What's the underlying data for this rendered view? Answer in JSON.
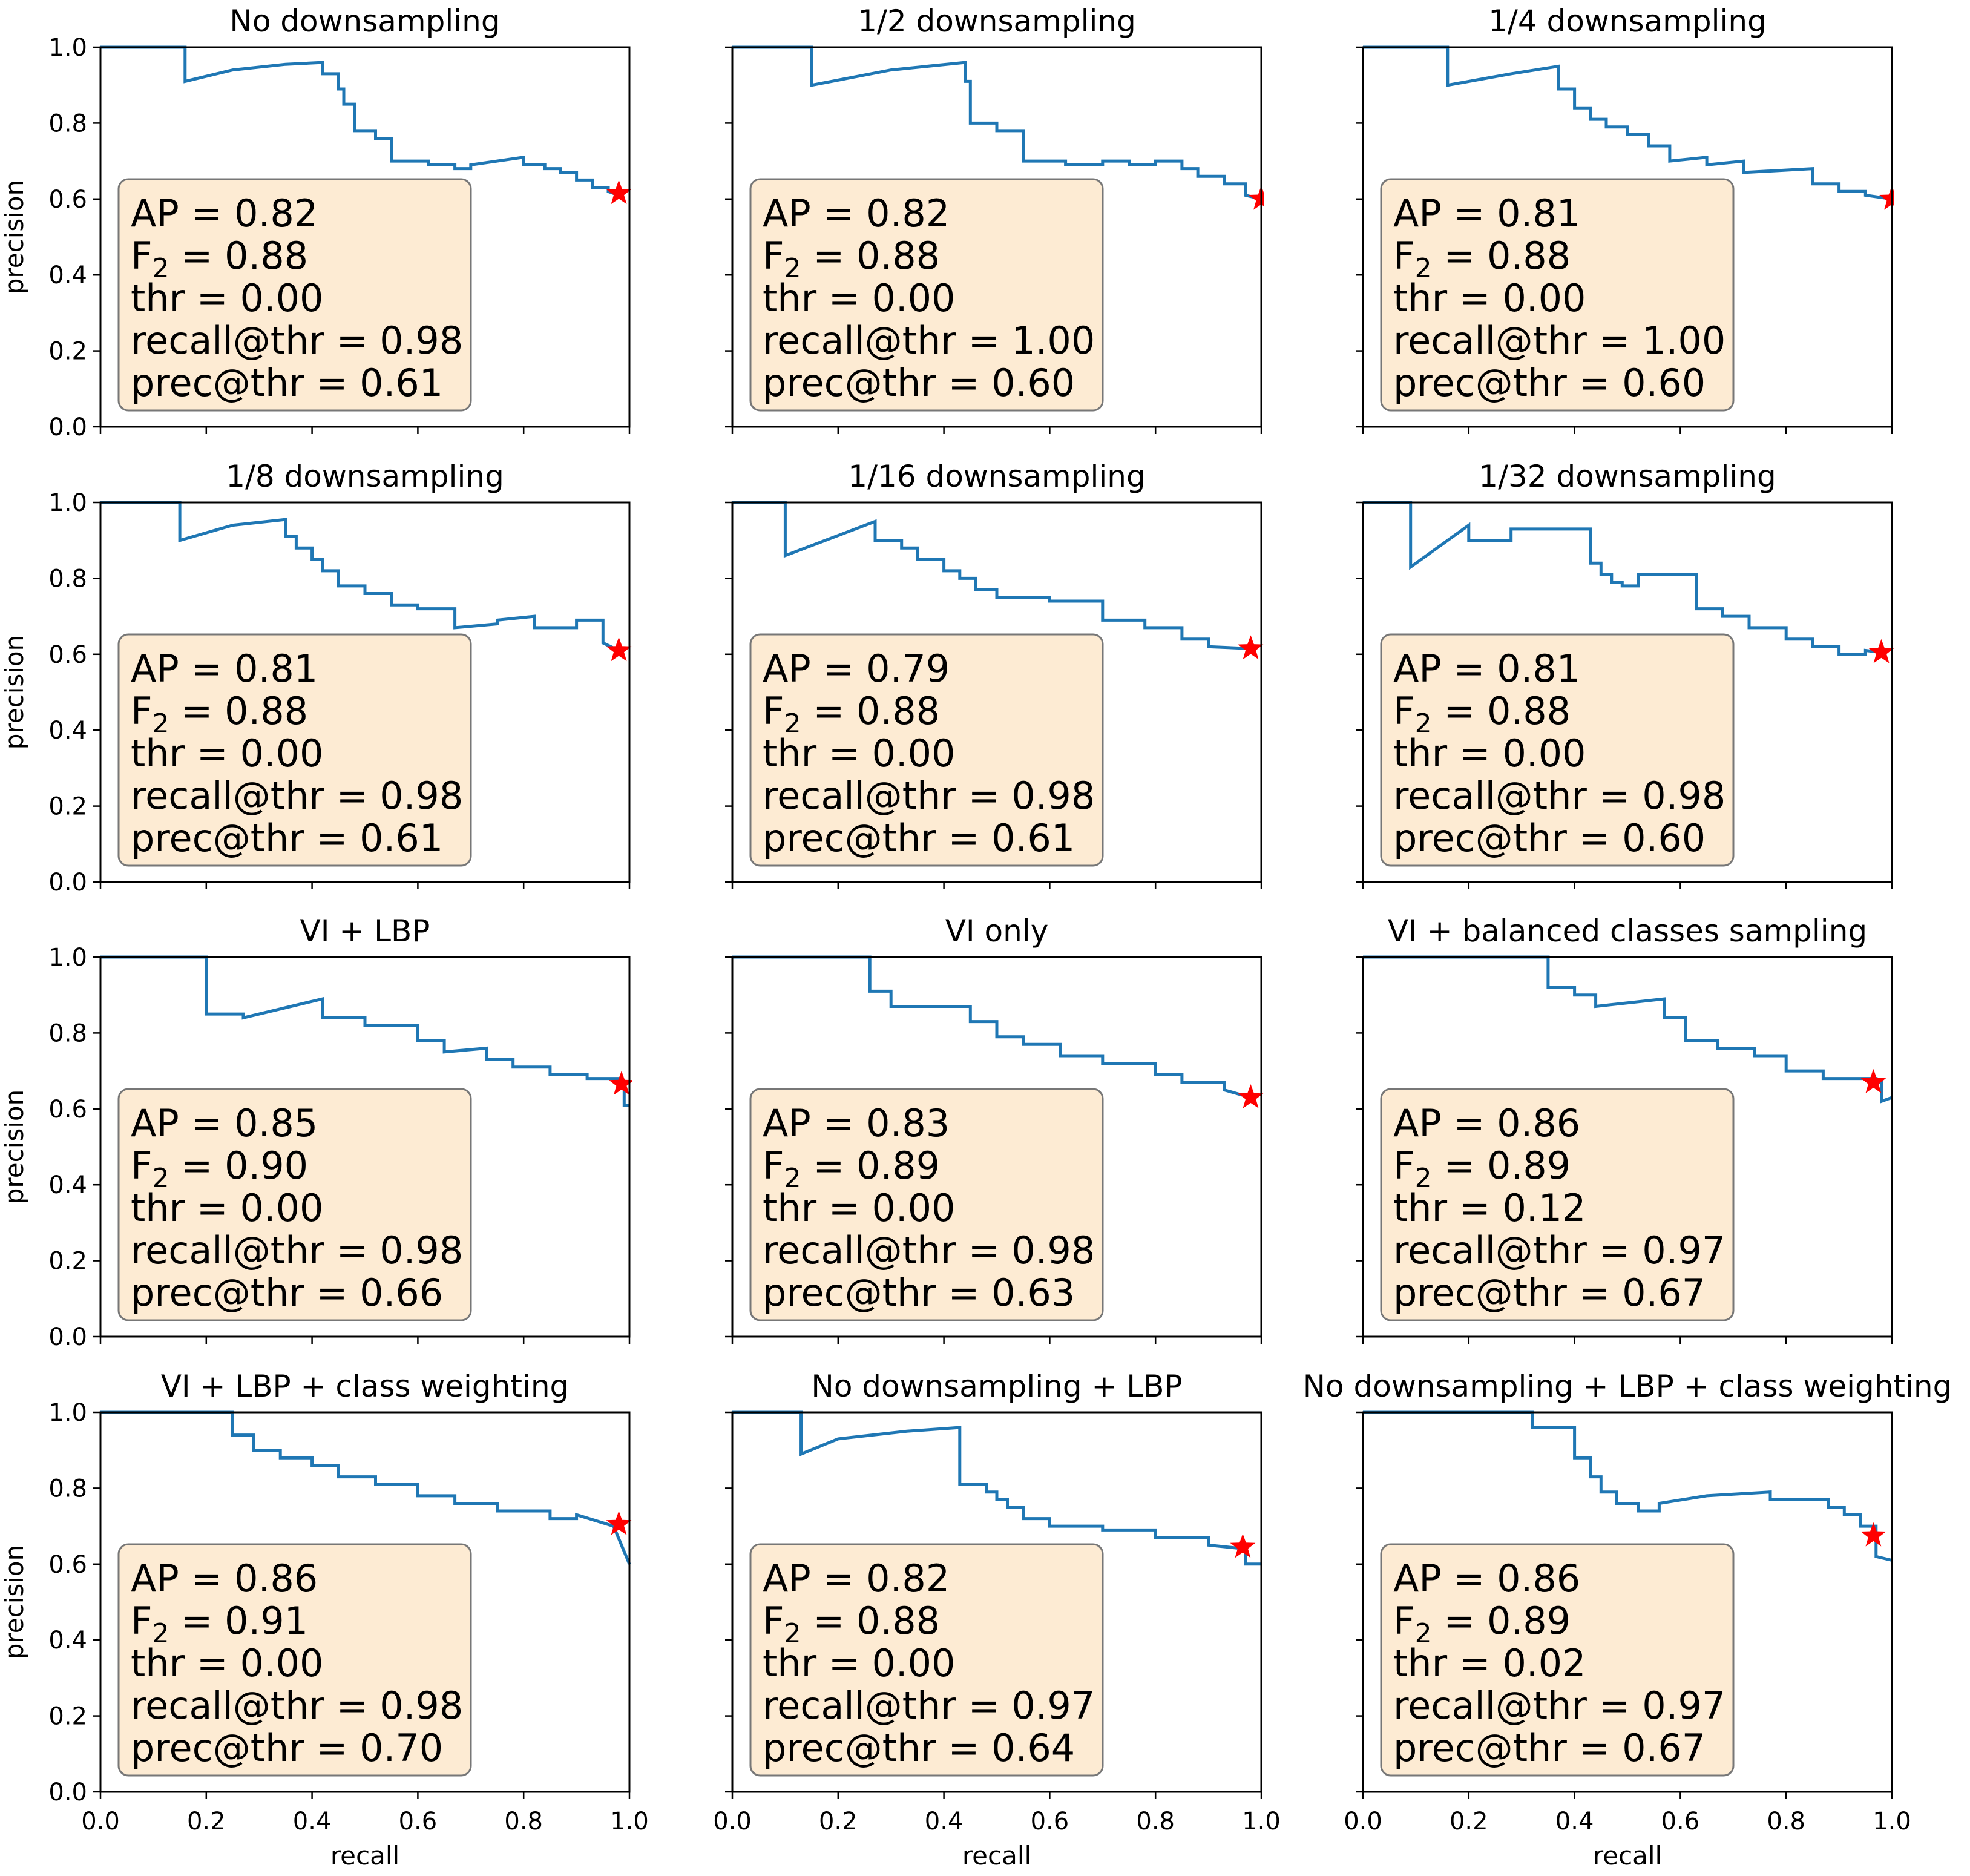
{
  "chart_data": [
    {
      "type": "line",
      "title": "No downsampling",
      "xlabel": "",
      "ylabel": "precision",
      "xlim": [
        0,
        1
      ],
      "ylim": [
        0,
        1
      ],
      "series": [
        {
          "x": [
            0.0,
            0.16,
            0.16,
            0.25,
            0.35,
            0.42,
            0.42,
            0.45,
            0.45,
            0.46,
            0.46,
            0.48,
            0.48,
            0.52,
            0.52,
            0.55,
            0.55,
            0.62,
            0.62,
            0.67,
            0.67,
            0.7,
            0.7,
            0.8,
            0.8,
            0.84,
            0.84,
            0.87,
            0.87,
            0.9,
            0.9,
            0.93,
            0.93,
            0.96,
            0.96,
            0.98
          ],
          "y": [
            1.0,
            1.0,
            0.91,
            0.94,
            0.955,
            0.96,
            0.93,
            0.93,
            0.89,
            0.89,
            0.85,
            0.85,
            0.78,
            0.78,
            0.76,
            0.76,
            0.7,
            0.7,
            0.69,
            0.69,
            0.68,
            0.68,
            0.69,
            0.71,
            0.69,
            0.69,
            0.68,
            0.68,
            0.67,
            0.67,
            0.65,
            0.65,
            0.63,
            0.63,
            0.62,
            0.61
          ]
        }
      ],
      "star": {
        "x": 0.98,
        "y": 0.615
      },
      "box": {
        "ap": "AP = 0.82",
        "f2_prefix": "F",
        "f2_sub": "2",
        "f2_value": " = 0.88",
        "thr": "thr = 0.00",
        "recall": "recall@thr = 0.98",
        "prec": "prec@thr = 0.61"
      }
    },
    {
      "type": "line",
      "title": "1/2 downsampling",
      "xlabel": "",
      "ylabel": "",
      "xlim": [
        0,
        1
      ],
      "ylim": [
        0,
        1
      ],
      "series": [
        {
          "x": [
            0.0,
            0.15,
            0.15,
            0.3,
            0.44,
            0.44,
            0.45,
            0.45,
            0.5,
            0.5,
            0.55,
            0.55,
            0.63,
            0.63,
            0.7,
            0.7,
            0.75,
            0.75,
            0.8,
            0.8,
            0.85,
            0.85,
            0.88,
            0.88,
            0.93,
            0.93,
            0.97,
            0.97,
            1.0
          ],
          "y": [
            1.0,
            1.0,
            0.9,
            0.94,
            0.96,
            0.91,
            0.91,
            0.8,
            0.8,
            0.78,
            0.78,
            0.7,
            0.7,
            0.69,
            0.69,
            0.7,
            0.7,
            0.69,
            0.69,
            0.7,
            0.7,
            0.68,
            0.68,
            0.66,
            0.66,
            0.64,
            0.64,
            0.61,
            0.6
          ]
        }
      ],
      "star": {
        "x": 1.0,
        "y": 0.6
      },
      "box": {
        "ap": "AP = 0.82",
        "f2_prefix": "F",
        "f2_sub": "2",
        "f2_value": " = 0.88",
        "thr": "thr = 0.00",
        "recall": "recall@thr = 1.00",
        "prec": "prec@thr = 0.60"
      }
    },
    {
      "type": "line",
      "title": "1/4 downsampling",
      "xlabel": "",
      "ylabel": "",
      "xlim": [
        0,
        1
      ],
      "ylim": [
        0,
        1
      ],
      "series": [
        {
          "x": [
            0.0,
            0.16,
            0.16,
            0.28,
            0.37,
            0.37,
            0.4,
            0.4,
            0.43,
            0.43,
            0.46,
            0.46,
            0.5,
            0.5,
            0.54,
            0.54,
            0.58,
            0.58,
            0.65,
            0.65,
            0.72,
            0.72,
            0.85,
            0.85,
            0.9,
            0.9,
            0.95,
            0.95,
            1.0
          ],
          "y": [
            1.0,
            1.0,
            0.9,
            0.93,
            0.95,
            0.89,
            0.89,
            0.84,
            0.84,
            0.81,
            0.81,
            0.79,
            0.79,
            0.77,
            0.77,
            0.74,
            0.74,
            0.7,
            0.71,
            0.69,
            0.7,
            0.67,
            0.68,
            0.64,
            0.64,
            0.62,
            0.62,
            0.61,
            0.6
          ]
        }
      ],
      "star": {
        "x": 1.0,
        "y": 0.6
      },
      "box": {
        "ap": "AP = 0.81",
        "f2_prefix": "F",
        "f2_sub": "2",
        "f2_value": " = 0.88",
        "thr": "thr = 0.00",
        "recall": "recall@thr = 1.00",
        "prec": "prec@thr = 0.60"
      }
    },
    {
      "type": "line",
      "title": "1/8 downsampling",
      "xlabel": "",
      "ylabel": "precision",
      "xlim": [
        0,
        1
      ],
      "ylim": [
        0,
        1
      ],
      "series": [
        {
          "x": [
            0.0,
            0.15,
            0.15,
            0.25,
            0.35,
            0.35,
            0.37,
            0.37,
            0.4,
            0.4,
            0.42,
            0.42,
            0.45,
            0.45,
            0.5,
            0.5,
            0.55,
            0.55,
            0.6,
            0.6,
            0.67,
            0.67,
            0.75,
            0.75,
            0.82,
            0.82,
            0.9,
            0.9,
            0.95,
            0.95,
            0.98
          ],
          "y": [
            1.0,
            1.0,
            0.9,
            0.94,
            0.955,
            0.91,
            0.91,
            0.88,
            0.88,
            0.85,
            0.85,
            0.82,
            0.82,
            0.78,
            0.78,
            0.76,
            0.76,
            0.73,
            0.73,
            0.72,
            0.72,
            0.67,
            0.68,
            0.69,
            0.7,
            0.67,
            0.67,
            0.69,
            0.69,
            0.63,
            0.61
          ]
        }
      ],
      "star": {
        "x": 0.98,
        "y": 0.61
      },
      "box": {
        "ap": "AP = 0.81",
        "f2_prefix": "F",
        "f2_sub": "2",
        "f2_value": " = 0.88",
        "thr": "thr = 0.00",
        "recall": "recall@thr = 0.98",
        "prec": "prec@thr = 0.61"
      }
    },
    {
      "type": "line",
      "title": "1/16 downsampling",
      "xlabel": "",
      "ylabel": "",
      "xlim": [
        0,
        1
      ],
      "ylim": [
        0,
        1
      ],
      "series": [
        {
          "x": [
            0.0,
            0.1,
            0.1,
            0.27,
            0.27,
            0.32,
            0.32,
            0.35,
            0.35,
            0.4,
            0.4,
            0.43,
            0.43,
            0.46,
            0.46,
            0.5,
            0.5,
            0.6,
            0.6,
            0.7,
            0.7,
            0.78,
            0.78,
            0.85,
            0.85,
            0.9,
            0.9,
            0.98
          ],
          "y": [
            1.0,
            1.0,
            0.86,
            0.95,
            0.9,
            0.9,
            0.88,
            0.88,
            0.85,
            0.85,
            0.82,
            0.82,
            0.8,
            0.8,
            0.77,
            0.77,
            0.75,
            0.75,
            0.74,
            0.74,
            0.69,
            0.69,
            0.67,
            0.67,
            0.64,
            0.64,
            0.62,
            0.615
          ]
        }
      ],
      "star": {
        "x": 0.98,
        "y": 0.615
      },
      "box": {
        "ap": "AP = 0.79",
        "f2_prefix": "F",
        "f2_sub": "2",
        "f2_value": " = 0.88",
        "thr": "thr = 0.00",
        "recall": "recall@thr = 0.98",
        "prec": "prec@thr = 0.61"
      }
    },
    {
      "type": "line",
      "title": "1/32 downsampling",
      "xlabel": "",
      "ylabel": "",
      "xlim": [
        0,
        1
      ],
      "ylim": [
        0,
        1
      ],
      "series": [
        {
          "x": [
            0.0,
            0.09,
            0.09,
            0.2,
            0.2,
            0.28,
            0.28,
            0.43,
            0.43,
            0.45,
            0.45,
            0.47,
            0.47,
            0.49,
            0.49,
            0.52,
            0.52,
            0.63,
            0.63,
            0.68,
            0.68,
            0.73,
            0.73,
            0.8,
            0.8,
            0.85,
            0.85,
            0.9,
            0.9,
            0.95,
            0.95,
            0.98
          ],
          "y": [
            1.0,
            1.0,
            0.83,
            0.94,
            0.9,
            0.9,
            0.93,
            0.93,
            0.84,
            0.84,
            0.81,
            0.81,
            0.79,
            0.79,
            0.78,
            0.78,
            0.81,
            0.81,
            0.72,
            0.72,
            0.7,
            0.7,
            0.67,
            0.67,
            0.64,
            0.64,
            0.62,
            0.62,
            0.6,
            0.6,
            0.61,
            0.605
          ]
        }
      ],
      "star": {
        "x": 0.98,
        "y": 0.605
      },
      "box": {
        "ap": "AP = 0.81",
        "f2_prefix": "F",
        "f2_sub": "2",
        "f2_value": " = 0.88",
        "thr": "thr = 0.00",
        "recall": "recall@thr = 0.98",
        "prec": "prec@thr = 0.60"
      }
    },
    {
      "type": "line",
      "title": "VI + LBP",
      "xlabel": "",
      "ylabel": "precision",
      "xlim": [
        0,
        1
      ],
      "ylim": [
        0,
        1
      ],
      "series": [
        {
          "x": [
            0.0,
            0.2,
            0.2,
            0.27,
            0.27,
            0.42,
            0.42,
            0.5,
            0.5,
            0.6,
            0.6,
            0.65,
            0.65,
            0.73,
            0.73,
            0.78,
            0.78,
            0.85,
            0.85,
            0.92,
            0.92,
            0.98,
            0.98,
            0.99,
            0.99,
            1.0
          ],
          "y": [
            1.0,
            1.0,
            0.85,
            0.85,
            0.84,
            0.89,
            0.84,
            0.84,
            0.82,
            0.82,
            0.78,
            0.78,
            0.75,
            0.76,
            0.73,
            0.73,
            0.71,
            0.71,
            0.69,
            0.69,
            0.68,
            0.68,
            0.66,
            0.66,
            0.61,
            0.61
          ]
        }
      ],
      "star": {
        "x": 0.985,
        "y": 0.665
      },
      "box": {
        "ap": "AP = 0.85",
        "f2_prefix": "F",
        "f2_sub": "2",
        "f2_value": " = 0.90",
        "thr": "thr = 0.00",
        "recall": "recall@thr = 0.98",
        "prec": "prec@thr = 0.66"
      }
    },
    {
      "type": "line",
      "title": "VI only",
      "xlabel": "",
      "ylabel": "",
      "xlim": [
        0,
        1
      ],
      "ylim": [
        0,
        1
      ],
      "series": [
        {
          "x": [
            0.0,
            0.26,
            0.26,
            0.3,
            0.3,
            0.45,
            0.45,
            0.5,
            0.5,
            0.55,
            0.55,
            0.62,
            0.62,
            0.7,
            0.7,
            0.8,
            0.8,
            0.85,
            0.85,
            0.93,
            0.93,
            0.98
          ],
          "y": [
            1.0,
            1.0,
            0.91,
            0.91,
            0.87,
            0.87,
            0.83,
            0.83,
            0.79,
            0.79,
            0.77,
            0.77,
            0.74,
            0.74,
            0.72,
            0.72,
            0.69,
            0.69,
            0.67,
            0.67,
            0.65,
            0.63
          ]
        }
      ],
      "star": {
        "x": 0.98,
        "y": 0.63
      },
      "box": {
        "ap": "AP = 0.83",
        "f2_prefix": "F",
        "f2_sub": "2",
        "f2_value": " = 0.89",
        "thr": "thr = 0.00",
        "recall": "recall@thr = 0.98",
        "prec": "prec@thr = 0.63"
      }
    },
    {
      "type": "line",
      "title": "VI + balanced classes sampling",
      "xlabel": "",
      "ylabel": "",
      "xlim": [
        0,
        1
      ],
      "ylim": [
        0,
        1
      ],
      "series": [
        {
          "x": [
            0.0,
            0.35,
            0.35,
            0.4,
            0.4,
            0.44,
            0.44,
            0.57,
            0.57,
            0.61,
            0.61,
            0.67,
            0.67,
            0.74,
            0.74,
            0.8,
            0.8,
            0.87,
            0.87,
            0.97,
            0.97,
            0.98,
            0.98,
            1.0
          ],
          "y": [
            1.0,
            1.0,
            0.92,
            0.92,
            0.9,
            0.9,
            0.87,
            0.89,
            0.84,
            0.84,
            0.78,
            0.78,
            0.76,
            0.76,
            0.74,
            0.74,
            0.7,
            0.7,
            0.68,
            0.68,
            0.67,
            0.67,
            0.62,
            0.63
          ]
        }
      ],
      "star": {
        "x": 0.965,
        "y": 0.67
      },
      "box": {
        "ap": "AP = 0.86",
        "f2_prefix": "F",
        "f2_sub": "2",
        "f2_value": " = 0.89",
        "thr": "thr = 0.12",
        "recall": "recall@thr = 0.97",
        "prec": "prec@thr = 0.67"
      }
    },
    {
      "type": "line",
      "title": "VI + LBP + class weighting",
      "xlabel": "recall",
      "ylabel": "precision",
      "xlim": [
        0,
        1
      ],
      "ylim": [
        0,
        1
      ],
      "series": [
        {
          "x": [
            0.0,
            0.25,
            0.25,
            0.29,
            0.29,
            0.34,
            0.34,
            0.4,
            0.4,
            0.45,
            0.45,
            0.52,
            0.52,
            0.6,
            0.6,
            0.67,
            0.67,
            0.75,
            0.75,
            0.85,
            0.85,
            0.9,
            0.9,
            0.97,
            1.0
          ],
          "y": [
            1.0,
            1.0,
            0.94,
            0.94,
            0.9,
            0.9,
            0.88,
            0.88,
            0.86,
            0.86,
            0.83,
            0.83,
            0.81,
            0.81,
            0.78,
            0.78,
            0.76,
            0.76,
            0.74,
            0.74,
            0.72,
            0.72,
            0.73,
            0.7,
            0.6
          ]
        }
      ],
      "star": {
        "x": 0.98,
        "y": 0.705
      },
      "box": {
        "ap": "AP = 0.86",
        "f2_prefix": "F",
        "f2_sub": "2",
        "f2_value": " = 0.91",
        "thr": "thr = 0.00",
        "recall": "recall@thr = 0.98",
        "prec": "prec@thr = 0.70"
      }
    },
    {
      "type": "line",
      "title": "No downsampling + LBP",
      "xlabel": "recall",
      "ylabel": "",
      "xlim": [
        0,
        1
      ],
      "ylim": [
        0,
        1
      ],
      "series": [
        {
          "x": [
            0.0,
            0.13,
            0.13,
            0.2,
            0.33,
            0.43,
            0.43,
            0.48,
            0.48,
            0.5,
            0.5,
            0.52,
            0.52,
            0.55,
            0.55,
            0.6,
            0.6,
            0.7,
            0.7,
            0.8,
            0.8,
            0.9,
            0.9,
            0.97,
            0.97,
            1.0
          ],
          "y": [
            1.0,
            1.0,
            0.89,
            0.93,
            0.95,
            0.96,
            0.81,
            0.81,
            0.79,
            0.79,
            0.77,
            0.77,
            0.75,
            0.75,
            0.72,
            0.72,
            0.7,
            0.7,
            0.69,
            0.69,
            0.67,
            0.67,
            0.65,
            0.64,
            0.6,
            0.6
          ]
        }
      ],
      "star": {
        "x": 0.965,
        "y": 0.645
      },
      "box": {
        "ap": "AP = 0.82",
        "f2_prefix": "F",
        "f2_sub": "2",
        "f2_value": " = 0.88",
        "thr": "thr = 0.00",
        "recall": "recall@thr = 0.97",
        "prec": "prec@thr = 0.64"
      }
    },
    {
      "type": "line",
      "title": "No downsampling + LBP + class weighting",
      "xlabel": "recall",
      "ylabel": "",
      "xlim": [
        0,
        1
      ],
      "ylim": [
        0,
        1
      ],
      "series": [
        {
          "x": [
            0.0,
            0.32,
            0.32,
            0.4,
            0.4,
            0.43,
            0.43,
            0.45,
            0.45,
            0.48,
            0.48,
            0.52,
            0.52,
            0.56,
            0.56,
            0.65,
            0.77,
            0.77,
            0.88,
            0.88,
            0.91,
            0.91,
            0.94,
            0.94,
            0.97,
            0.97,
            1.0
          ],
          "y": [
            1.0,
            1.0,
            0.96,
            0.96,
            0.88,
            0.88,
            0.83,
            0.83,
            0.79,
            0.79,
            0.76,
            0.76,
            0.74,
            0.74,
            0.76,
            0.78,
            0.79,
            0.77,
            0.77,
            0.75,
            0.75,
            0.73,
            0.73,
            0.7,
            0.7,
            0.62,
            0.61
          ]
        }
      ],
      "star": {
        "x": 0.965,
        "y": 0.675
      },
      "box": {
        "ap": "AP = 0.86",
        "f2_prefix": "F",
        "f2_sub": "2",
        "f2_value": " = 0.89",
        "thr": "thr = 0.02",
        "recall": "recall@thr = 0.97",
        "prec": "prec@thr = 0.67"
      }
    }
  ],
  "ticks": {
    "x": [
      "0.0",
      "0.2",
      "0.4",
      "0.6",
      "0.8",
      "1.0"
    ],
    "y": [
      "0.0",
      "0.2",
      "0.4",
      "0.6",
      "0.8",
      "1.0"
    ]
  },
  "colors": {
    "line": "#1f77b4",
    "star": "#ff0000",
    "box_fill": "#fdebd3",
    "box_edge": "#777777"
  }
}
